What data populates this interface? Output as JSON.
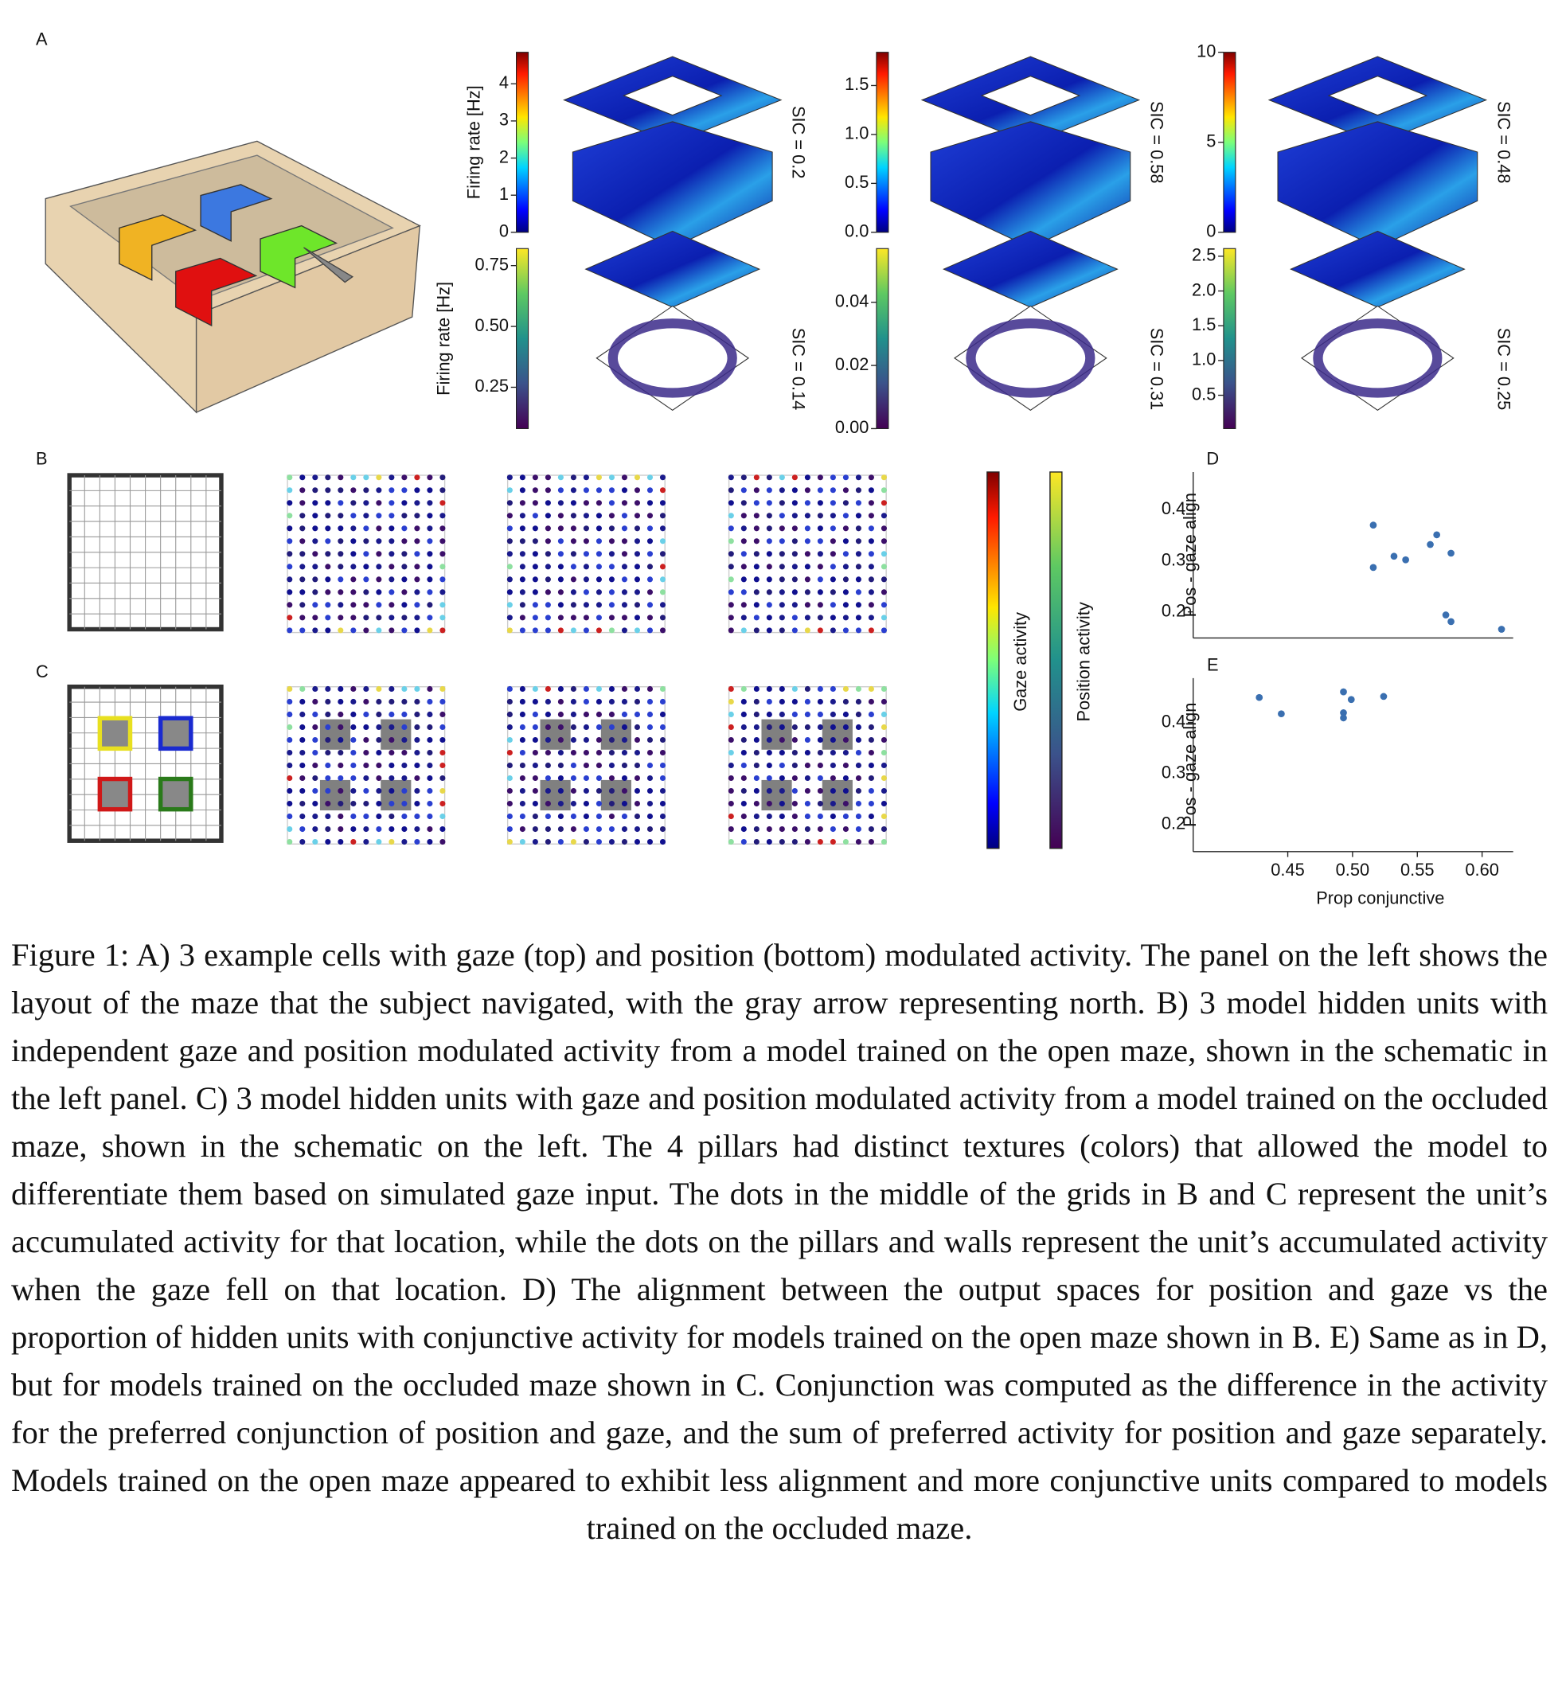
{
  "figure": {
    "panel_a": {
      "label": "A",
      "gaze_axis_label": "Firing rate [Hz]",
      "position_axis_label": "Firing rate [Hz]",
      "cells": [
        {
          "gaze_lim": [
            0,
            4.85
          ],
          "gaze_ticks": [
            0,
            1,
            2,
            3,
            4
          ],
          "position_lim": [
            0.08,
            0.82
          ],
          "position_ticks": [
            0.25,
            {
              "value": 0.5,
              "label": "0.50"
            },
            0.75
          ],
          "sic_gaze": "SIC = 0.2",
          "sic_position": "SIC = 0.14"
        },
        {
          "gaze_lim": [
            0,
            1.84
          ],
          "gaze_ticks": [
            {
              "value": 0,
              "label": "0.0"
            },
            0.5,
            {
              "value": 1,
              "label": "1.0"
            },
            1.5
          ],
          "position_lim": [
            0,
            0.057
          ],
          "position_ticks": [
            {
              "value": 0,
              "label": "0.00"
            },
            0.02,
            0.04
          ],
          "sic_gaze": "SIC = 0.58",
          "sic_position": "SIC = 0.31"
        },
        {
          "gaze_lim": [
            0,
            10
          ],
          "gaze_ticks": [
            0,
            5,
            10
          ],
          "position_lim": [
            0.02,
            2.61
          ],
          "position_ticks": [
            0.5,
            {
              "value": 1,
              "label": "1.0"
            },
            1.5,
            {
              "value": 2,
              "label": "2.0"
            },
            2.5
          ],
          "sic_gaze": "SIC = 0.48",
          "sic_position": "SIC = 0.25"
        }
      ]
    },
    "panel_b": {
      "label": "B"
    },
    "panel_c": {
      "label": "C"
    },
    "colorbar_labels": {
      "gaze": "Gaze activity",
      "position": "Position activity"
    },
    "caption": "Figure 1: A) 3 example cells with gaze (top) and position (bottom) modulated activity. The panel on the left shows the layout of the maze that the subject navigated, with the gray arrow representing north. B) 3 model hidden units with independent gaze and position modulated activity from a model trained on the open maze, shown in the schematic in the left panel. C) 3 model hidden units with gaze and position modulated activity from a model trained on the occluded maze, shown in the schematic on the left. The 4 pillars had distinct textures (colors) that allowed the model to differentiate them based on simulated gaze input. The dots in the middle of the grids in B and C represent the unit’s accumulated activity for that location, while the dots on the pillars and walls represent the unit’s accumulated activity when the gaze fell on that location. D) The alignment between the output spaces for position and gaze vs the proportion of hidden units with conjunctive activity for models trained on the open maze shown in B. E) Same as in D, but for models trained on the occluded maze shown in C. Conjunction was computed as the difference in the activity for the preferred conjunction of position and gaze, and the sum of preferred activity for position and gaze separately. Models trained on the open maze appeared to exhibit less alignment and more conjunctive units compared to models trained on the occluded maze."
  },
  "chart_data": [
    {
      "type": "scatter",
      "label": "D",
      "y_label": "Pos - gaze align",
      "color": "#3a6fb0",
      "x": [
        0.516,
        0.516,
        0.532,
        0.541,
        0.56,
        0.565,
        0.576,
        0.572,
        0.576,
        0.615
      ],
      "values": [
        0.37,
        0.287,
        0.309,
        0.302,
        0.332,
        0.351,
        0.315,
        0.194,
        0.181,
        0.166
      ],
      "xlim": [
        0.377,
        0.624
      ],
      "ylim": [
        0.149,
        0.474
      ],
      "yticks": [
        0.2,
        0.3,
        0.4
      ]
    },
    {
      "type": "scatter",
      "label": "E",
      "y_label": "Pos - gaze align",
      "x_label": "Prop conjunctive",
      "color": "#3a6fb0",
      "x": [
        0.428,
        0.445,
        0.493,
        0.493,
        0.493,
        0.499,
        0.524
      ],
      "values": [
        0.449,
        0.417,
        0.46,
        0.419,
        0.409,
        0.445,
        0.451
      ],
      "xlim": [
        0.377,
        0.624
      ],
      "ylim": [
        0.147,
        0.487
      ],
      "yticks": [
        0.2,
        0.3,
        0.4
      ],
      "xticks": [
        0.45,
        {
          "value": 0.5,
          "label": "0.50"
        },
        0.55,
        {
          "value": 0.6,
          "label": "0.60"
        }
      ]
    }
  ]
}
